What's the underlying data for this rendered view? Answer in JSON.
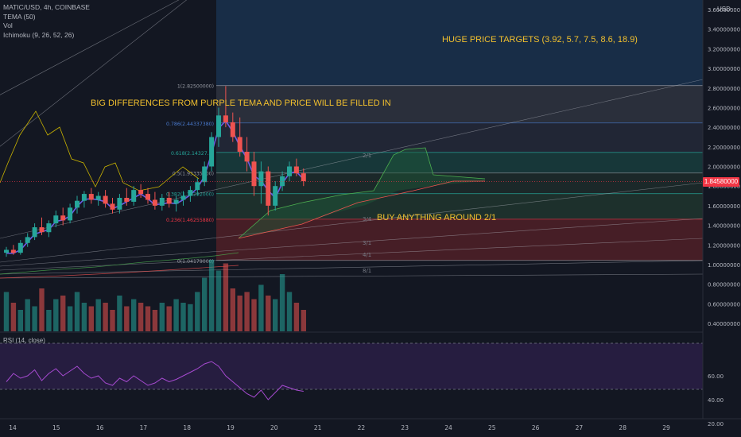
{
  "legend": {
    "symbol": "MATIC/USD, 4h, COINBASE",
    "tema": "TEMA (50)",
    "vol": "Vol",
    "ichimoku": "Ichimoku (9, 26, 52, 26)",
    "rsi": "RSI (14, close)"
  },
  "currency": "USD",
  "annotations": {
    "targets": "HUGE PRICE TARGETS (3.92, 5.7, 7.5, 8.6, 18.9)",
    "tema_gap": "BIG DIFFERENCES FROM PURPLE TEMA AND PRICE WILL BE FILLED IN",
    "buy": "BUY ANYTHING AROUND 2/1"
  },
  "last_price": "1.84580000",
  "colors": {
    "up": "#26a69a",
    "down": "#ef5350",
    "tema": "#6c5ce7",
    "rsi": "#a64ad0",
    "annotation": "#f2c02e",
    "fib_top": "#1e3f66",
    "fib_gray": "#3a3f4d",
    "fib_teal": "#1b4d4a",
    "fib_green": "#233d32",
    "fib_red": "#5c2228"
  },
  "chart_data": {
    "type": "candlestick",
    "title": "MATIC/USD, 4h, COINBASE",
    "price_axis": {
      "ticks": [
        "3.60000000",
        "3.40000000",
        "3.20000000",
        "3.00000000",
        "2.80000000",
        "2.60000000",
        "2.40000000",
        "2.20000000",
        "2.00000000",
        "1.80000000",
        "1.60000000",
        "1.40000000",
        "1.20000000",
        "1.00000000",
        "0.80000000",
        "0.60000000",
        "0.40000000"
      ],
      "ylim": [
        0.3,
        3.65
      ]
    },
    "rsi_axis": {
      "ticks": [
        "60.00",
        "40.00",
        "20.00"
      ],
      "upper_band": 70,
      "lower_band": 30
    },
    "time_axis": {
      "ticks": [
        "14",
        "15",
        "16",
        "17",
        "18",
        "19",
        "20",
        "21",
        "22",
        "23",
        "24",
        "25",
        "26",
        "27",
        "28",
        "29"
      ]
    },
    "fib_levels": [
      {
        "ratio": "1",
        "label": "1(2.82500000)",
        "price": 2.825
      },
      {
        "ratio": "0.786",
        "label": "0.786(2.44337380)",
        "price": 2.44337
      },
      {
        "ratio": "0.618",
        "label": "0.618(2.14327...)",
        "price": 2.14327
      },
      {
        "ratio": "0.5",
        "label": "0.5(1.93335000)",
        "price": 1.93335
      },
      {
        "ratio": "0.382",
        "label": "0.382(1.72292000)",
        "price": 1.72292
      },
      {
        "ratio": "0.236",
        "label": "0.236(1.46255880)",
        "price": 1.46256
      },
      {
        "ratio": "0",
        "label": "0(1.04179000)",
        "price": 1.04179
      }
    ],
    "gann_labels": [
      "2/1",
      "3/4",
      "3/1",
      "4/1",
      "8/1"
    ],
    "candles": [
      {
        "o": 1.12,
        "h": 1.18,
        "l": 1.08,
        "c": 1.15
      },
      {
        "o": 1.15,
        "h": 1.2,
        "l": 1.1,
        "c": 1.12
      },
      {
        "o": 1.12,
        "h": 1.25,
        "l": 1.1,
        "c": 1.22
      },
      {
        "o": 1.22,
        "h": 1.32,
        "l": 1.18,
        "c": 1.28
      },
      {
        "o": 1.28,
        "h": 1.42,
        "l": 1.25,
        "c": 1.38
      },
      {
        "o": 1.38,
        "h": 1.48,
        "l": 1.3,
        "c": 1.33
      },
      {
        "o": 1.33,
        "h": 1.45,
        "l": 1.28,
        "c": 1.42
      },
      {
        "o": 1.42,
        "h": 1.55,
        "l": 1.38,
        "c": 1.5
      },
      {
        "o": 1.5,
        "h": 1.58,
        "l": 1.4,
        "c": 1.45
      },
      {
        "o": 1.45,
        "h": 1.62,
        "l": 1.42,
        "c": 1.58
      },
      {
        "o": 1.58,
        "h": 1.7,
        "l": 1.52,
        "c": 1.65
      },
      {
        "o": 1.65,
        "h": 1.75,
        "l": 1.58,
        "c": 1.72
      },
      {
        "o": 1.72,
        "h": 1.78,
        "l": 1.62,
        "c": 1.66
      },
      {
        "o": 1.66,
        "h": 1.74,
        "l": 1.6,
        "c": 1.7
      },
      {
        "o": 1.7,
        "h": 1.76,
        "l": 1.58,
        "c": 1.62
      },
      {
        "o": 1.62,
        "h": 1.68,
        "l": 1.52,
        "c": 1.56
      },
      {
        "o": 1.56,
        "h": 1.72,
        "l": 1.52,
        "c": 1.68
      },
      {
        "o": 1.68,
        "h": 1.78,
        "l": 1.6,
        "c": 1.64
      },
      {
        "o": 1.64,
        "h": 1.8,
        "l": 1.6,
        "c": 1.76
      },
      {
        "o": 1.76,
        "h": 1.82,
        "l": 1.68,
        "c": 1.72
      },
      {
        "o": 1.72,
        "h": 1.78,
        "l": 1.62,
        "c": 1.66
      },
      {
        "o": 1.66,
        "h": 1.74,
        "l": 1.56,
        "c": 1.6
      },
      {
        "o": 1.6,
        "h": 1.72,
        "l": 1.55,
        "c": 1.68
      },
      {
        "o": 1.68,
        "h": 1.74,
        "l": 1.58,
        "c": 1.62
      },
      {
        "o": 1.62,
        "h": 1.7,
        "l": 1.54,
        "c": 1.66
      },
      {
        "o": 1.66,
        "h": 1.75,
        "l": 1.6,
        "c": 1.7
      },
      {
        "o": 1.7,
        "h": 1.8,
        "l": 1.64,
        "c": 1.76
      },
      {
        "o": 1.76,
        "h": 1.88,
        "l": 1.7,
        "c": 1.84
      },
      {
        "o": 1.84,
        "h": 2.05,
        "l": 1.8,
        "c": 2.0
      },
      {
        "o": 2.0,
        "h": 2.35,
        "l": 1.95,
        "c": 2.3
      },
      {
        "o": 2.3,
        "h": 2.6,
        "l": 2.2,
        "c": 2.52
      },
      {
        "o": 2.52,
        "h": 2.82,
        "l": 2.4,
        "c": 2.45
      },
      {
        "o": 2.45,
        "h": 2.55,
        "l": 2.25,
        "c": 2.3
      },
      {
        "o": 2.3,
        "h": 2.5,
        "l": 2.1,
        "c": 2.15
      },
      {
        "o": 2.15,
        "h": 2.3,
        "l": 1.95,
        "c": 2.05
      },
      {
        "o": 2.05,
        "h": 2.15,
        "l": 1.7,
        "c": 1.8
      },
      {
        "o": 1.8,
        "h": 2.05,
        "l": 1.62,
        "c": 1.95
      },
      {
        "o": 1.95,
        "h": 2.0,
        "l": 1.5,
        "c": 1.6
      },
      {
        "o": 1.6,
        "h": 1.85,
        "l": 1.55,
        "c": 1.8
      },
      {
        "o": 1.8,
        "h": 1.95,
        "l": 1.75,
        "c": 1.9
      },
      {
        "o": 1.9,
        "h": 2.05,
        "l": 1.85,
        "c": 2.0
      },
      {
        "o": 2.0,
        "h": 2.08,
        "l": 1.9,
        "c": 1.93
      },
      {
        "o": 1.93,
        "h": 1.98,
        "l": 1.8,
        "c": 1.85
      }
    ],
    "volume": [
      0.55,
      0.4,
      0.3,
      0.45,
      0.35,
      0.6,
      0.3,
      0.45,
      0.5,
      0.35,
      0.55,
      0.4,
      0.35,
      0.45,
      0.4,
      0.3,
      0.5,
      0.35,
      0.45,
      0.4,
      0.35,
      0.3,
      0.4,
      0.35,
      0.45,
      0.4,
      0.38,
      0.55,
      0.75,
      1.0,
      0.85,
      0.95,
      0.6,
      0.5,
      0.55,
      0.45,
      0.65,
      0.5,
      0.45,
      0.8,
      0.55,
      0.4,
      0.3
    ],
    "rsi": [
      55,
      62,
      58,
      60,
      65,
      56,
      62,
      66,
      60,
      64,
      68,
      62,
      58,
      60,
      54,
      52,
      58,
      55,
      60,
      56,
      52,
      54,
      58,
      55,
      57,
      60,
      63,
      66,
      70,
      72,
      68,
      60,
      55,
      50,
      45,
      42,
      48,
      40,
      46,
      52,
      50,
      48,
      47
    ]
  }
}
